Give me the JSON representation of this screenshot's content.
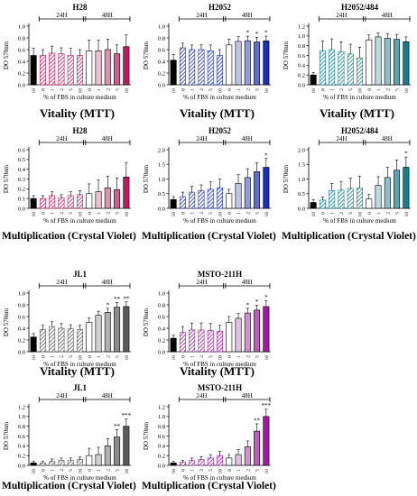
{
  "common": {
    "ylabel": "DO 570nm",
    "xlabel": "% of FBS in culture medium",
    "bracket_left": "24H",
    "bracket_right": "48H",
    "categories": [
      "10",
      "0",
      "1",
      "2",
      "5",
      "10",
      "0",
      "1",
      "2",
      "5",
      "10"
    ]
  },
  "captions": {
    "vitality": "Vitality (MTT)",
    "multiplication": "Multiplication (Crystal Violet)"
  },
  "colors": {
    "H28": "#c2185b",
    "H2052": "#1a2fb3",
    "H2052_484": "#0f7d92",
    "JL1": "#5a5a5a",
    "MSTO": "#9c1c9c"
  },
  "chart_data": [
    {
      "type": "bar",
      "title": "H28",
      "assay": "Vitality (MTT)",
      "ylim": [
        0,
        1.0
      ],
      "yticks": [
        "0.0",
        "0.2",
        "0.4",
        "0.6",
        "0.8",
        "1.0"
      ],
      "values": [
        0.5,
        0.5,
        0.54,
        0.53,
        0.5,
        0.5,
        0.58,
        0.58,
        0.6,
        0.53,
        0.65
      ],
      "errors": [
        0.12,
        0.1,
        0.12,
        0.1,
        0.12,
        0.1,
        0.18,
        0.18,
        0.18,
        0.15,
        0.2
      ],
      "stars": [
        "",
        "",
        "",
        "",
        "",
        "",
        "",
        "",
        "",
        "",
        ""
      ]
    },
    {
      "type": "bar",
      "title": "H2052",
      "assay": "Vitality (MTT)",
      "ylim": [
        0,
        1.0
      ],
      "yticks": [
        "0.0",
        "0.2",
        "0.4",
        "0.6",
        "0.8",
        "1.0"
      ],
      "values": [
        0.42,
        0.63,
        0.6,
        0.6,
        0.58,
        0.5,
        0.68,
        0.74,
        0.75,
        0.73,
        0.75
      ],
      "errors": [
        0.1,
        0.08,
        0.08,
        0.08,
        0.1,
        0.1,
        0.1,
        0.08,
        0.08,
        0.08,
        0.08
      ],
      "stars": [
        "",
        "",
        "",
        "",
        "",
        "",
        "",
        "",
        "*",
        "*",
        "*"
      ]
    },
    {
      "type": "bar",
      "title": "H2052/484",
      "assay": "Vitality (MTT)",
      "ylim": [
        0,
        1.2
      ],
      "yticks": [
        "0.0",
        "0.2",
        "0.4",
        "0.6",
        "0.8",
        "1.0",
        "1.2"
      ],
      "values": [
        0.2,
        0.7,
        0.72,
        0.68,
        0.63,
        0.55,
        0.92,
        0.98,
        0.95,
        0.93,
        0.88
      ],
      "errors": [
        0.05,
        0.2,
        0.22,
        0.2,
        0.2,
        0.22,
        0.1,
        0.08,
        0.1,
        0.1,
        0.1
      ],
      "stars": [
        "",
        "",
        "",
        "",
        "",
        "",
        "",
        "",
        "",
        "",
        ""
      ]
    },
    {
      "type": "bar",
      "title": "H28",
      "assay": "Multiplication (Crystal Violet)",
      "ylim": [
        0,
        0.6
      ],
      "yticks": [
        "0.0",
        "0.1",
        "0.2",
        "0.3",
        "0.4",
        "0.5",
        "0.6"
      ],
      "values": [
        0.1,
        0.1,
        0.13,
        0.11,
        0.13,
        0.14,
        0.15,
        0.17,
        0.21,
        0.19,
        0.32
      ],
      "errors": [
        0.03,
        0.03,
        0.04,
        0.03,
        0.04,
        0.04,
        0.1,
        0.12,
        0.12,
        0.12,
        0.15
      ],
      "stars": [
        "",
        "",
        "",
        "",
        "",
        "",
        "",
        "",
        "",
        "",
        ""
      ]
    },
    {
      "type": "bar",
      "title": "H2052",
      "assay": "Multiplication (Crystal Violet)",
      "ylim": [
        0,
        2.0
      ],
      "yticks": [
        "0.0",
        "0.5",
        "1.0",
        "1.5",
        "2.0"
      ],
      "values": [
        0.3,
        0.4,
        0.55,
        0.6,
        0.65,
        0.7,
        0.5,
        0.85,
        1.05,
        1.25,
        1.4
      ],
      "errors": [
        0.1,
        0.15,
        0.2,
        0.2,
        0.25,
        0.3,
        0.15,
        0.3,
        0.3,
        0.3,
        0.3
      ],
      "stars": [
        "",
        "",
        "",
        "",
        "",
        "",
        "",
        "",
        "",
        "",
        "*"
      ]
    },
    {
      "type": "bar",
      "title": "H2052/484",
      "assay": "Multiplication (Crystal Violet)",
      "ylim": [
        0,
        2.0
      ],
      "yticks": [
        "0.0",
        "0.5",
        "1.0",
        "1.5",
        "2.0"
      ],
      "values": [
        0.2,
        0.28,
        0.6,
        0.62,
        0.68,
        0.7,
        0.32,
        0.78,
        1.05,
        1.3,
        1.4
      ],
      "errors": [
        0.1,
        0.1,
        0.25,
        0.3,
        0.35,
        0.4,
        0.15,
        0.3,
        0.35,
        0.35,
        0.35
      ],
      "stars": [
        "",
        "",
        "",
        "",
        "",
        "",
        "",
        "",
        "",
        "",
        "*"
      ]
    },
    {
      "type": "bar",
      "title": "JL1",
      "assay": "Vitality (MTT)",
      "ylim": [
        0,
        1.0
      ],
      "yticks": [
        "0.0",
        "0.2",
        "0.4",
        "0.6",
        "0.8",
        "1.0"
      ],
      "values": [
        0.25,
        0.38,
        0.43,
        0.4,
        0.39,
        0.38,
        0.5,
        0.62,
        0.67,
        0.76,
        0.77
      ],
      "errors": [
        0.06,
        0.07,
        0.08,
        0.08,
        0.07,
        0.07,
        0.08,
        0.07,
        0.07,
        0.08,
        0.08
      ],
      "stars": [
        "",
        "",
        "",
        "",
        "",
        "",
        "",
        "",
        "*",
        "**",
        "**"
      ]
    },
    {
      "type": "bar",
      "title": "MSTO-211H",
      "assay": "Vitality (MTT)",
      "ylim": [
        0,
        1.0
      ],
      "yticks": [
        "0.0",
        "0.2",
        "0.4",
        "0.6",
        "0.8",
        "1.0"
      ],
      "values": [
        0.23,
        0.33,
        0.37,
        0.37,
        0.36,
        0.35,
        0.5,
        0.57,
        0.66,
        0.71,
        0.77
      ],
      "errors": [
        0.05,
        0.1,
        0.12,
        0.12,
        0.12,
        0.1,
        0.1,
        0.08,
        0.08,
        0.08,
        0.1
      ],
      "stars": [
        "",
        "",
        "",
        "",
        "",
        "",
        "",
        "",
        "*",
        "*",
        "*"
      ]
    },
    {
      "type": "bar",
      "title": "JL1",
      "assay": "Multiplication (Crystal Violet)",
      "ylim": [
        0,
        1.2
      ],
      "yticks": [
        "0.0",
        "0.2",
        "0.4",
        "0.6",
        "0.8",
        "1.0",
        "1.2"
      ],
      "values": [
        0.05,
        0.05,
        0.08,
        0.1,
        0.1,
        0.12,
        0.2,
        0.22,
        0.4,
        0.58,
        0.8
      ],
      "errors": [
        0.03,
        0.03,
        0.05,
        0.05,
        0.05,
        0.05,
        0.15,
        0.15,
        0.15,
        0.15,
        0.15
      ],
      "stars": [
        "",
        "",
        "",
        "",
        "",
        "",
        "",
        "",
        "",
        "**",
        "***"
      ]
    },
    {
      "type": "bar",
      "title": "MSTO-211H",
      "assay": "Multiplication (Crystal Violet)",
      "ylim": [
        0,
        1.2
      ],
      "yticks": [
        "0.0",
        "0.2",
        "0.4",
        "0.6",
        "0.8",
        "1.0",
        "1.2"
      ],
      "values": [
        0.05,
        0.07,
        0.1,
        0.12,
        0.15,
        0.2,
        0.15,
        0.22,
        0.38,
        0.7,
        1.0
      ],
      "errors": [
        0.03,
        0.03,
        0.05,
        0.06,
        0.07,
        0.08,
        0.07,
        0.1,
        0.12,
        0.15,
        0.15
      ],
      "stars": [
        "",
        "",
        "",
        "",
        "",
        "",
        "",
        "",
        "",
        "**",
        "***"
      ]
    }
  ]
}
